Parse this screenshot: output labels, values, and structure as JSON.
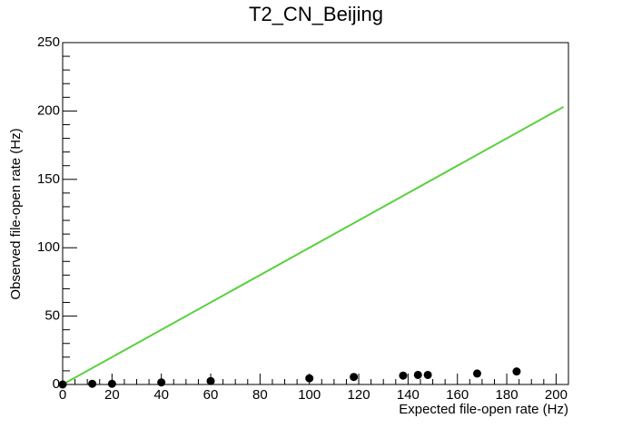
{
  "chart_data": {
    "type": "scatter",
    "title": "T2_CN_Beijing",
    "x_label": "Expected file-open rate (Hz)",
    "y_label": "Observed file-open rate (Hz)",
    "x": [
      0,
      12,
      20,
      40,
      60,
      100,
      118,
      138,
      144,
      148,
      168,
      184
    ],
    "values": [
      0,
      0.5,
      0.5,
      1.5,
      2.5,
      4.5,
      5.5,
      6.5,
      7,
      7,
      8,
      9.5
    ],
    "color": "#000000",
    "reference_line": {
      "x": [
        0,
        203
      ],
      "values": [
        0,
        203
      ],
      "color": "#5ad040"
    },
    "xlim": [
      0,
      205
    ],
    "ylim": [
      0,
      250
    ],
    "xticks": [
      0,
      20,
      40,
      60,
      80,
      100,
      120,
      140,
      160,
      180,
      200
    ],
    "yticks": [
      0,
      50,
      100,
      150,
      200,
      250
    ]
  }
}
